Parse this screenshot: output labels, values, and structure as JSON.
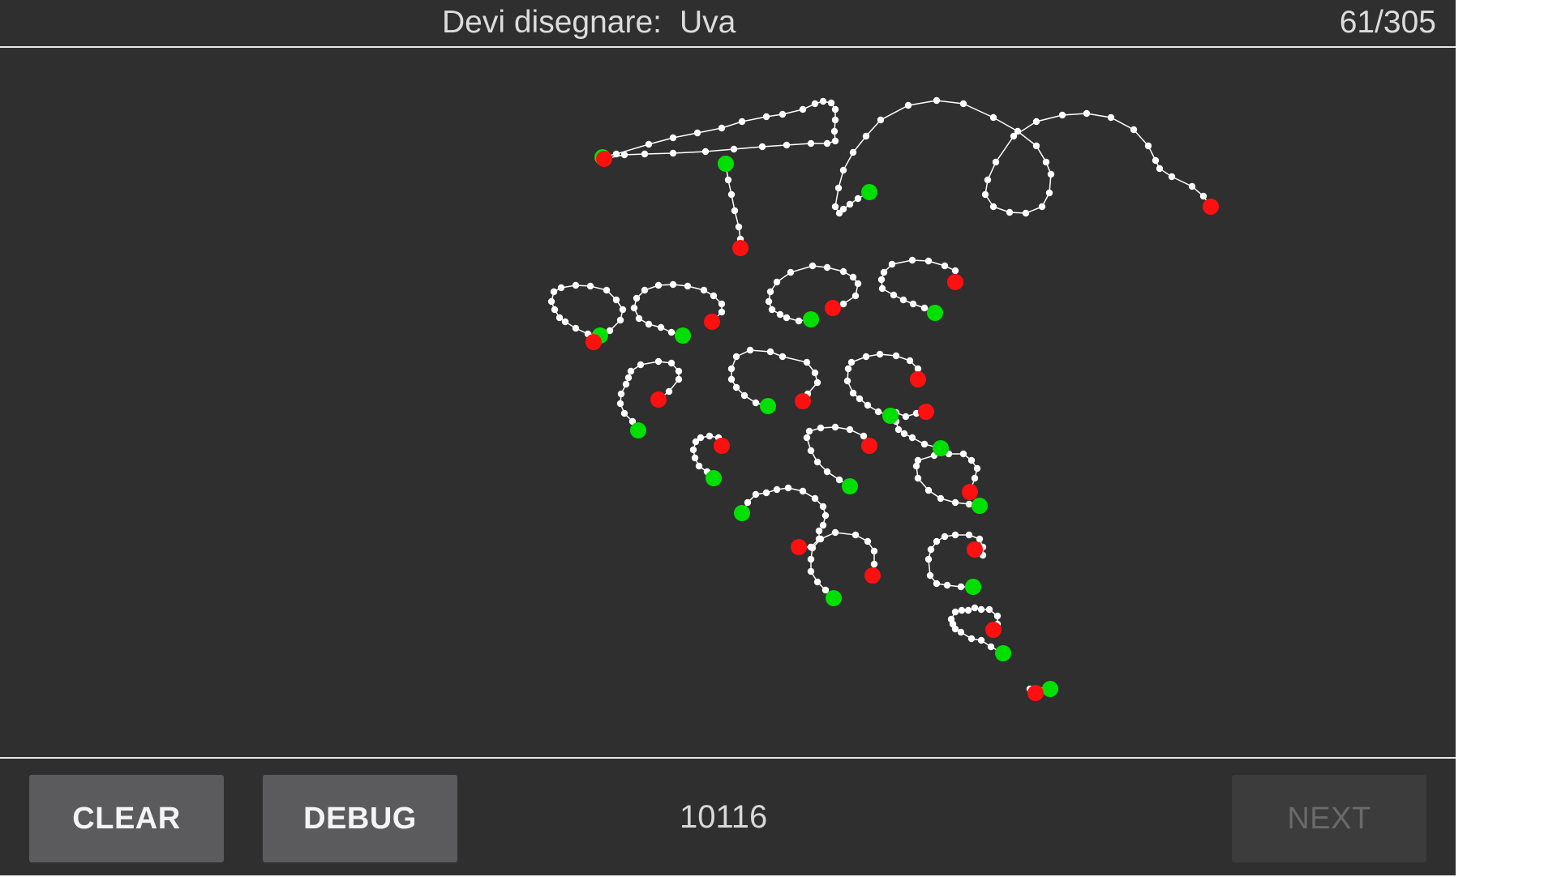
{
  "header": {
    "prompt_label": "Devi disegnare:",
    "prompt_word": "Uva",
    "counter": "61/305"
  },
  "footer": {
    "clear_label": "CLEAR",
    "debug_label": "DEBUG",
    "session_id": "10116",
    "next_label": "NEXT",
    "next_enabled": false
  },
  "colors": {
    "background": "#2f2f2f",
    "stroke": "#ffffff",
    "stroke_start": "#00e000",
    "stroke_end": "#ff1010"
  }
}
